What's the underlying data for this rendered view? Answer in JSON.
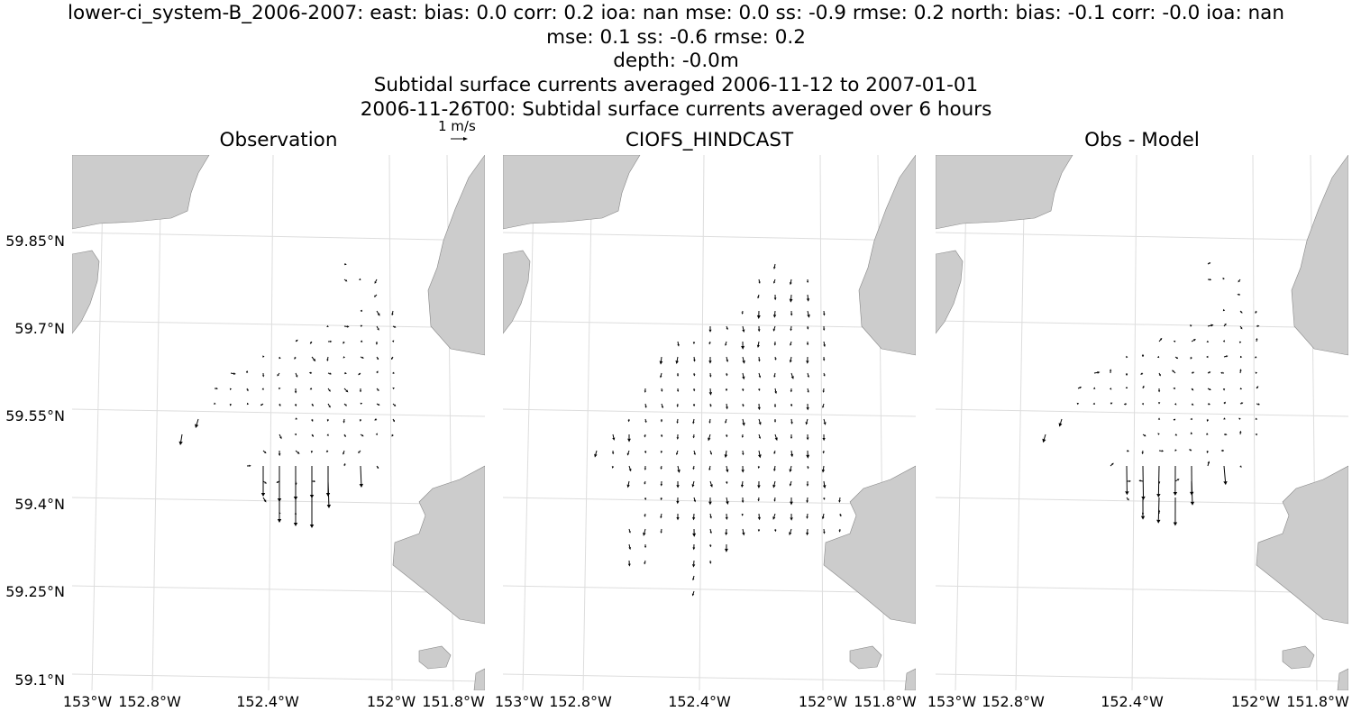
{
  "titles": [
    "lower-ci_system-B_2006-2007: east: bias: 0.0  corr: 0.2  ioa: nan  mse: 0.0  ss: -0.9  rmse: 0.2  north: bias: -0.1  corr: -0.0  ioa: nan",
    "mse: 0.1  ss: -0.6  rmse: 0.2",
    "depth: -0.0m",
    "Subtidal surface currents averaged 2006-11-12 to 2007-01-01",
    "2006-11-26T00: Subtidal surface currents averaged over 6 hours"
  ],
  "scale_label": "1 m/s",
  "panels": [
    {
      "title": "Observation"
    },
    {
      "title": "CIOFS_HINDCAST"
    },
    {
      "title": "Obs - Model"
    }
  ],
  "lat_labels": [
    "59.85°N",
    "59.7°N",
    "59.55°N",
    "59.4°N",
    "59.25°N",
    "59.1°N"
  ],
  "lon_labels": [
    "153°W",
    "152.8°W",
    "152.4°W",
    "152°W",
    "151.8°W"
  ],
  "colors": {
    "land": "#cccccc",
    "land_outline": "#888888",
    "grid": "#dddddd",
    "arrows": "#000000"
  }
}
